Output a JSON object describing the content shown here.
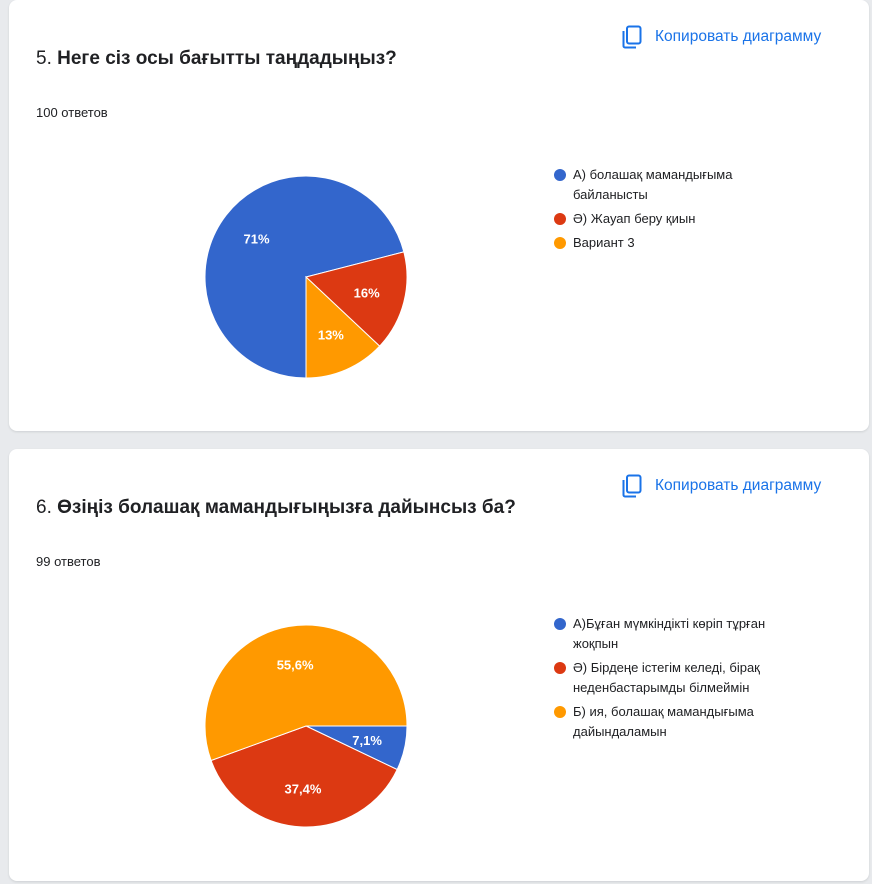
{
  "copy_button_label": "Копировать диаграмму",
  "colors": {
    "blue": "#3366cc",
    "red": "#dc3912",
    "orange": "#ff9900",
    "accent": "#1a73e8"
  },
  "questions": [
    {
      "number": "5.",
      "title": "Неге сіз осы бағытты таңдадыңыз?",
      "responses": "100 ответов"
    },
    {
      "number": "6.",
      "title": "Өзіңіз болашақ мамандығыңызға дайынсыз ба?",
      "responses": "99 ответов"
    }
  ],
  "chart_data": [
    {
      "type": "pie",
      "categories": [
        "А) болашақ мамандығыма байланысты",
        "Ә) Жауап беру қиын",
        "Вариант 3"
      ],
      "values": [
        71,
        16,
        13
      ],
      "labels": [
        "71%",
        "16%",
        "13%"
      ],
      "colors": [
        "#3366cc",
        "#dc3912",
        "#ff9900"
      ],
      "legend": "right"
    },
    {
      "type": "pie",
      "categories": [
        "А)Бұған мүмкіндікті көріп тұрған жоқпын",
        "Ә) Бірдеңе істегім келеді, бірақ неденбастарымды білмеймін",
        "Б) ия, болашақ мамандығыма дайындаламын"
      ],
      "values": [
        7.1,
        37.4,
        55.6
      ],
      "labels": [
        "7,1%",
        "37,4%",
        "55,6%"
      ],
      "colors": [
        "#3366cc",
        "#dc3912",
        "#ff9900"
      ],
      "legend": "right"
    }
  ]
}
